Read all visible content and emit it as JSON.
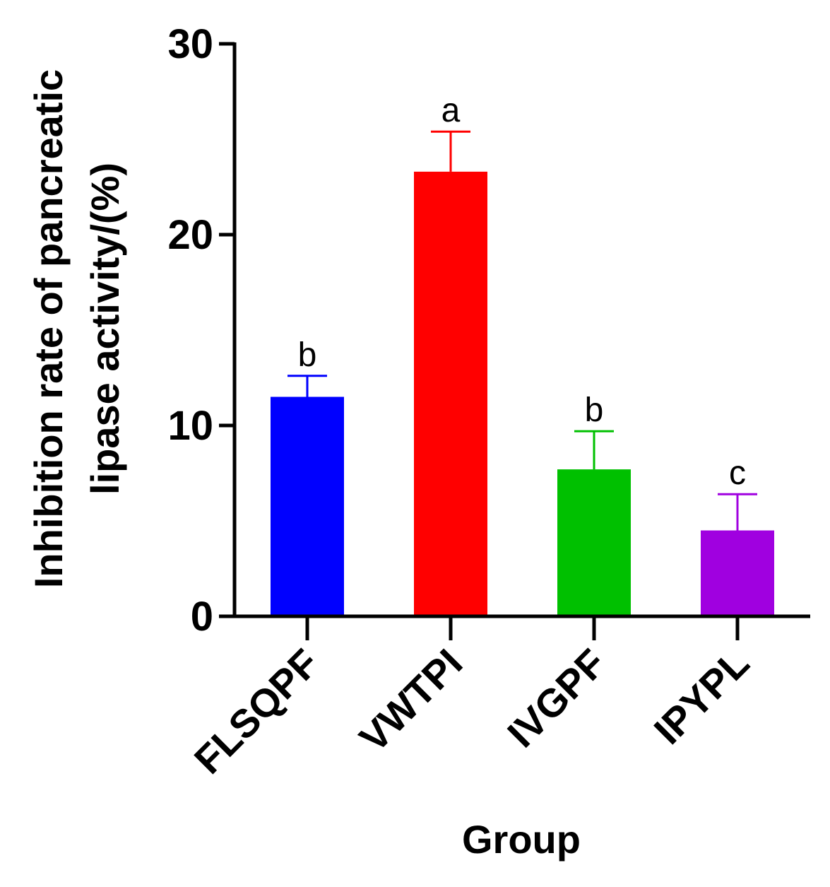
{
  "chart_data": {
    "type": "bar",
    "categories": [
      "FLSQPF",
      "VWTPI",
      "IVGPF",
      "IPYPL"
    ],
    "values": [
      11.5,
      23.3,
      7.7,
      4.5
    ],
    "errors": [
      1.1,
      2.1,
      2.0,
      1.9
    ],
    "significance_labels": [
      "b",
      "a",
      "b",
      "c"
    ],
    "colors": [
      "#0000ff",
      "#ff0000",
      "#00c000",
      "#a000e0"
    ],
    "title": "",
    "xlabel": "Group",
    "ylabel_line1": "Inhibition rate of pancreatic",
    "ylabel_line2": "lipase activity/(%)",
    "ylim": [
      0,
      30
    ],
    "yticks": [
      "0",
      "10",
      "20",
      "30"
    ],
    "grid": false,
    "legend": "none"
  }
}
